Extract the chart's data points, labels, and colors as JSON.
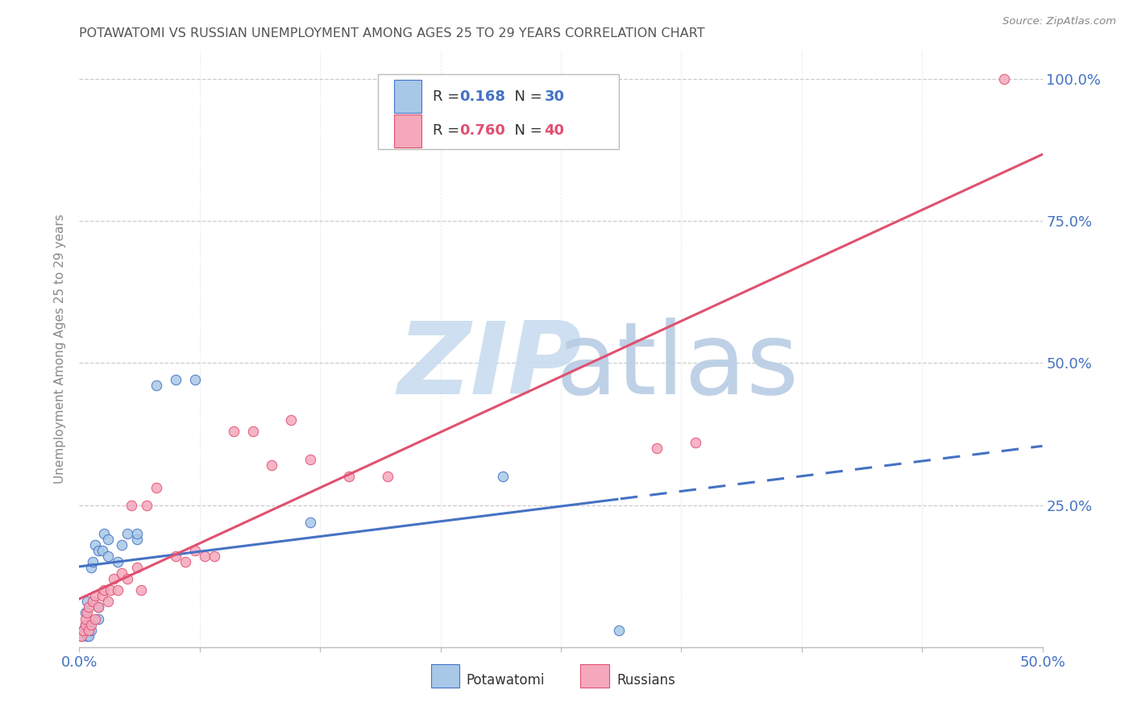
{
  "title": "POTAWATOMI VS RUSSIAN UNEMPLOYMENT AMONG AGES 25 TO 29 YEARS CORRELATION CHART",
  "source": "Source: ZipAtlas.com",
  "ylabel": "Unemployment Among Ages 25 to 29 years",
  "xlim": [
    0,
    0.5
  ],
  "ylim": [
    0,
    1.05
  ],
  "yticks": [
    0,
    0.25,
    0.5,
    0.75,
    1.0
  ],
  "ytick_labels": [
    "",
    "25.0%",
    "50.0%",
    "75.0%",
    "100.0%"
  ],
  "xticks": [
    0,
    0.0625,
    0.125,
    0.1875,
    0.25,
    0.3125,
    0.375,
    0.4375,
    0.5
  ],
  "blue_color": "#A8C8E8",
  "pink_color": "#F5A8BC",
  "blue_line_color": "#4472C4",
  "pink_line_color": "#E05070",
  "text_dark": "#333333",
  "text_blue": "#4472C4",
  "text_r_color": "#333333",
  "background_color": "#FFFFFF",
  "grid_color": "#CCCCCC",
  "title_color": "#555555",
  "axis_label_color": "#4472C4",
  "watermark_zip_color": "#C8DCF0",
  "watermark_atlas_color": "#B8CCE4",
  "potawatomi_x": [
    0.001,
    0.002,
    0.003,
    0.003,
    0.004,
    0.004,
    0.005,
    0.005,
    0.006,
    0.006,
    0.007,
    0.008,
    0.01,
    0.01,
    0.01,
    0.012,
    0.013,
    0.015,
    0.015,
    0.02,
    0.022,
    0.025,
    0.03,
    0.03,
    0.04,
    0.05,
    0.06,
    0.12,
    0.22,
    0.28
  ],
  "potawatomi_y": [
    0.02,
    0.03,
    0.04,
    0.06,
    0.02,
    0.08,
    0.02,
    0.04,
    0.03,
    0.14,
    0.15,
    0.18,
    0.05,
    0.07,
    0.17,
    0.17,
    0.2,
    0.16,
    0.19,
    0.15,
    0.18,
    0.2,
    0.19,
    0.2,
    0.46,
    0.47,
    0.47,
    0.22,
    0.3,
    0.03
  ],
  "russians_x": [
    0.001,
    0.002,
    0.003,
    0.003,
    0.004,
    0.005,
    0.005,
    0.006,
    0.007,
    0.008,
    0.008,
    0.01,
    0.012,
    0.013,
    0.015,
    0.016,
    0.018,
    0.02,
    0.022,
    0.025,
    0.027,
    0.03,
    0.032,
    0.035,
    0.04,
    0.05,
    0.055,
    0.06,
    0.065,
    0.07,
    0.08,
    0.09,
    0.1,
    0.11,
    0.12,
    0.14,
    0.16,
    0.3,
    0.32,
    0.48
  ],
  "russians_y": [
    0.02,
    0.03,
    0.04,
    0.05,
    0.06,
    0.03,
    0.07,
    0.04,
    0.08,
    0.05,
    0.09,
    0.07,
    0.09,
    0.1,
    0.08,
    0.1,
    0.12,
    0.1,
    0.13,
    0.12,
    0.25,
    0.14,
    0.1,
    0.25,
    0.28,
    0.16,
    0.15,
    0.17,
    0.16,
    0.16,
    0.38,
    0.38,
    0.32,
    0.4,
    0.33,
    0.3,
    0.3,
    0.35,
    0.36,
    1.0
  ]
}
